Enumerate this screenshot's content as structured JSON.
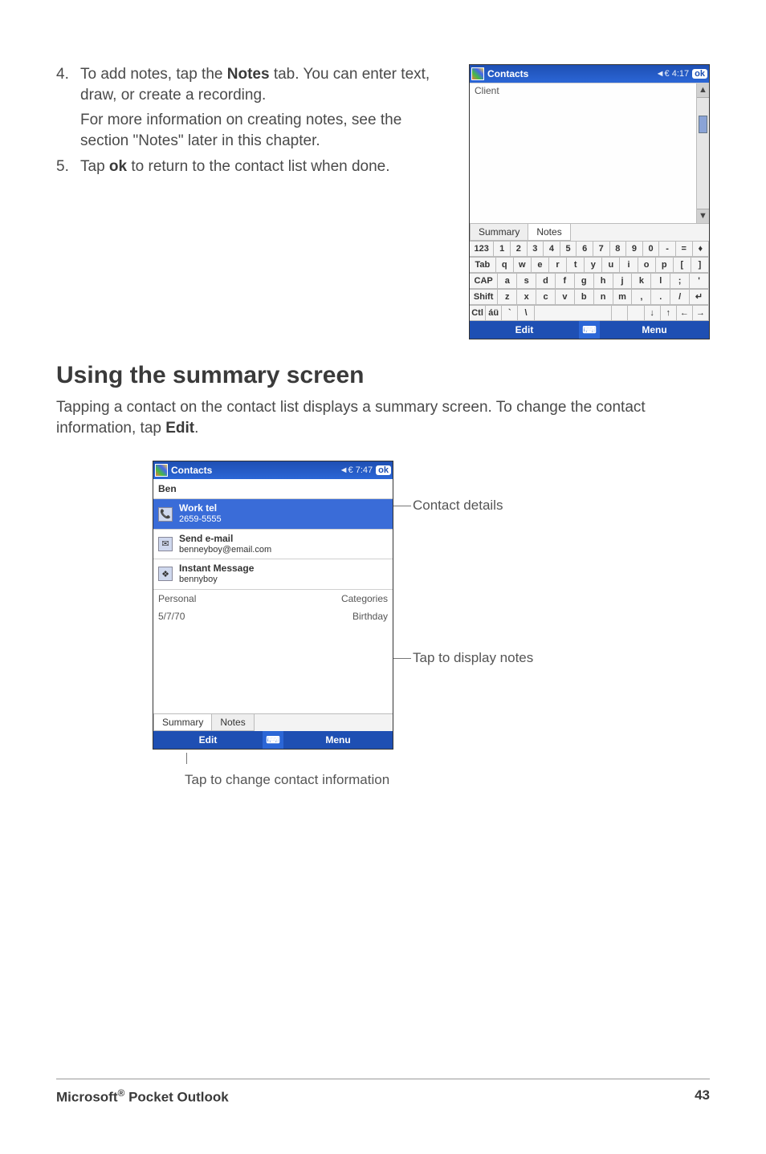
{
  "steps": {
    "s4_num": "4.",
    "s4_a": "To add notes, tap the ",
    "s4_bold": "Notes",
    "s4_b": " tab. You can enter text, draw, or create a recording.",
    "s4_sub": "For more information on creating notes, see the section  \"Notes\" later in this chapter.",
    "s5_num": "5.",
    "s5_a": "Tap ",
    "s5_bold": "ok",
    "s5_b": " to return to the contact list when done."
  },
  "heading": "Using the summary screen",
  "para_a": "Tapping a contact on the contact list displays a summary screen. To change the contact information, tap ",
  "para_bold": "Edit",
  "para_b": ".",
  "device1": {
    "title": "Contacts",
    "signal": "◄€ 4:17",
    "ok": "ok",
    "body_text": "Client",
    "tab_summary": "Summary",
    "tab_notes": "Notes",
    "kb_rows": [
      [
        "123",
        "1",
        "2",
        "3",
        "4",
        "5",
        "6",
        "7",
        "8",
        "9",
        "0",
        "-",
        "=",
        "♦"
      ],
      [
        "Tab",
        "q",
        "w",
        "e",
        "r",
        "t",
        "y",
        "u",
        "i",
        "o",
        "p",
        "[",
        "]"
      ],
      [
        "CAP",
        "a",
        "s",
        "d",
        "f",
        "g",
        "h",
        "j",
        "k",
        "l",
        ";",
        "'"
      ],
      [
        "Shift",
        "z",
        "x",
        "c",
        "v",
        "b",
        "n",
        "m",
        ",",
        ".",
        "/",
        "↵"
      ],
      [
        "Ctl",
        "áü",
        "`",
        "\\",
        " ",
        " ",
        " ",
        "↓",
        "↑",
        "←",
        "→"
      ]
    ],
    "bottom_edit": "Edit",
    "bottom_menu": "Menu"
  },
  "device2": {
    "title": "Contacts",
    "signal": "◄€ 7:47",
    "ok": "ok",
    "name": "Ben",
    "rows": [
      {
        "icon": "📞",
        "label": "Work tel",
        "sub": "2659-5555",
        "selected": true
      },
      {
        "icon": "✉",
        "label": "Send e-mail",
        "sub": "benneyboy@email.com",
        "selected": false
      },
      {
        "icon": "❖",
        "label": "Instant Message",
        "sub": "bennyboy",
        "selected": false
      }
    ],
    "info_left": "Personal",
    "info_right": "Categories",
    "info2_left": "5/7/70",
    "info2_right": "Birthday",
    "tab_summary": "Summary",
    "tab_notes": "Notes",
    "bottom_edit": "Edit",
    "bottom_menu": "Menu"
  },
  "callout_details": "Contact details",
  "callout_notes": "Tap to display notes",
  "callout_edit": "Tap to change contact information",
  "footer_left_a": "Microsoft",
  "footer_left_reg": "®",
  "footer_left_b": " Pocket Outlook",
  "footer_page": "43"
}
